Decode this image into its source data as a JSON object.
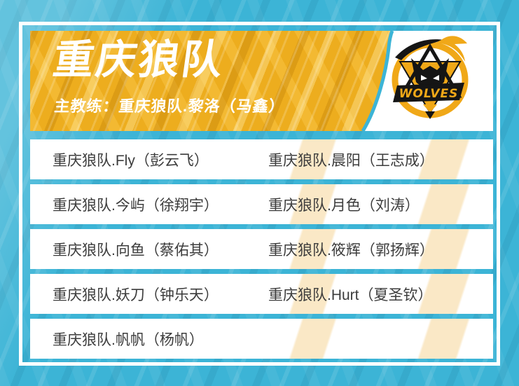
{
  "team": {
    "name": "重庆狼队",
    "coach_line": "主教练：重庆狼队.黎洛（马鑫）",
    "logo_text": "WOLVES"
  },
  "roster": {
    "rows": [
      {
        "left": "重庆狼队.Fly（彭云飞）",
        "right": "重庆狼队.晨阳（王志成）"
      },
      {
        "left": "重庆狼队.今屿（徐翔宇）",
        "right": "重庆狼队.月色（刘涛）"
      },
      {
        "left": "重庆狼队.向鱼（蔡佑其）",
        "right": "重庆狼队.筱辉（郭扬辉）"
      },
      {
        "left": "重庆狼队.妖刀（钟乐天）",
        "right": "重庆狼队.Hurt（夏圣钦）"
      },
      {
        "left": "重庆狼队.帆帆（杨帆）",
        "right": ""
      }
    ]
  },
  "colors": {
    "background_blue": "#3CB4D6",
    "header_gold": "#EDAD1E",
    "accent_cream": "#FAE8C6",
    "frame_white": "#FFFFFF",
    "row_text": "#3C3C3C",
    "logo_black": "#151515",
    "logo_gold": "#F0A818"
  }
}
